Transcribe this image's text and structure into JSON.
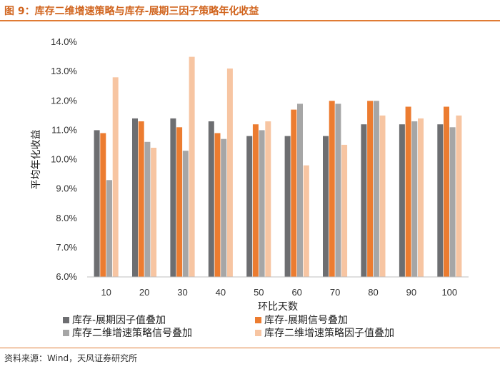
{
  "header": {
    "title": "图 9：库存二维增速策略与库存-展期三因子策略年化收益"
  },
  "footer": {
    "source": "资料来源：Wind，天风证券研究所"
  },
  "chart_data": {
    "type": "bar",
    "xlabel": "环比天数",
    "ylabel": "平均年化收益",
    "ylim": [
      6.0,
      14.0
    ],
    "ytick_step": 1.0,
    "grid": false,
    "legend_position": "bottom",
    "categories": [
      "10",
      "20",
      "30",
      "40",
      "50",
      "60",
      "70",
      "80",
      "90",
      "100"
    ],
    "series": [
      {
        "name": "库存-展期因子值叠加",
        "color": "#6d6e71",
        "values": [
          11.0,
          11.4,
          11.4,
          11.3,
          10.8,
          10.8,
          10.8,
          11.2,
          11.2,
          11.2
        ]
      },
      {
        "name": "库存-展期信号叠加",
        "color": "#ec7c30",
        "values": [
          10.9,
          11.3,
          11.1,
          10.9,
          11.2,
          11.7,
          12.0,
          12.0,
          11.8,
          11.8
        ]
      },
      {
        "name": "库存二维增速策略信号叠加",
        "color": "#a6a6a6",
        "values": [
          9.3,
          10.6,
          10.3,
          10.7,
          11.0,
          11.9,
          11.9,
          12.0,
          11.3,
          11.1
        ]
      },
      {
        "name": "库存二维增速策略因子值叠加",
        "color": "#f7c5a2",
        "values": [
          12.8,
          10.4,
          13.5,
          13.1,
          11.3,
          9.8,
          10.5,
          11.5,
          11.4,
          11.5
        ]
      }
    ]
  }
}
